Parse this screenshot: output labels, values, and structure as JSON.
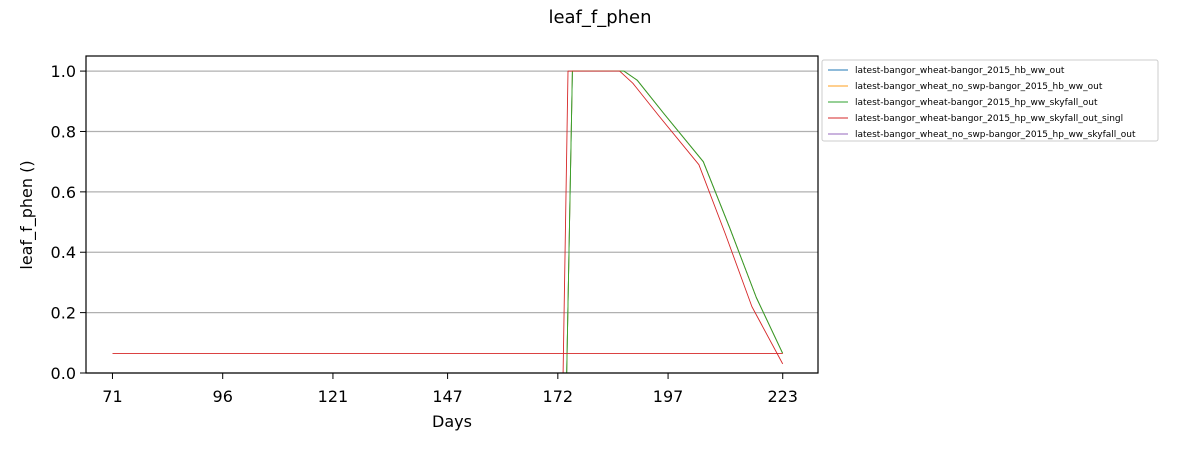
{
  "chart_data": {
    "type": "line",
    "title": "leaf_f_phen",
    "xlabel": "Days",
    "ylabel": "leaf_f_phen ()",
    "xlim": [
      65,
      231
    ],
    "ylim": [
      0.0,
      1.05
    ],
    "xticks": [
      71,
      96,
      121,
      147,
      172,
      197,
      223
    ],
    "yticks": [
      0.0,
      0.2,
      0.4,
      0.6,
      0.8,
      1.0
    ],
    "ytick_labels": [
      "0.0",
      "0.2",
      "0.4",
      "0.6",
      "0.8",
      "1.0"
    ],
    "grid": "horizontal",
    "legend_position": "outside-right-top",
    "series": [
      {
        "name": "latest-bangor_wheat-bangor_2015_hb_ww_out",
        "color": "#1f77b4",
        "x": [
          174.0,
          175.3,
          187,
          190,
          196,
          205,
          211,
          217,
          223
        ],
        "y": [
          0.0,
          1.0,
          1.0,
          0.97,
          0.86,
          0.7,
          0.48,
          0.25,
          0.065
        ]
      },
      {
        "name": "latest-bangor_wheat_no_swp-bangor_2015_hb_ww_out",
        "color": "#ff9f1c",
        "x": [
          174.0,
          175.3,
          187,
          190,
          196,
          205,
          211,
          217,
          223
        ],
        "y": [
          0.0,
          1.0,
          1.0,
          0.97,
          0.86,
          0.7,
          0.48,
          0.25,
          0.065
        ]
      },
      {
        "name": "latest-bangor_wheat-bangor_2015_hp_ww_skyfall_out",
        "color": "#2ca02c",
        "x": [
          174.0,
          175.3,
          187,
          190,
          196,
          205,
          211,
          217,
          223
        ],
        "y": [
          0.0,
          1.0,
          1.0,
          0.97,
          0.86,
          0.7,
          0.48,
          0.25,
          0.065
        ]
      },
      {
        "name": "latest-bangor_wheat-bangor_2015_hp_ww_skyfall_out_singl",
        "color": "#d62728",
        "x": [
          71,
          223,
          null,
          173.2,
          174.3,
          186,
          189,
          195,
          204,
          210,
          216,
          223
        ],
        "y": [
          0.065,
          0.065,
          null,
          0.0,
          1.0,
          1.0,
          0.96,
          0.85,
          0.69,
          0.46,
          0.22,
          0.03
        ]
      },
      {
        "name": "latest-bangor_wheat_no_swp-bangor_2015_hp_ww_skyfall_out",
        "color": "#9467bd",
        "x": [],
        "y": []
      }
    ]
  }
}
